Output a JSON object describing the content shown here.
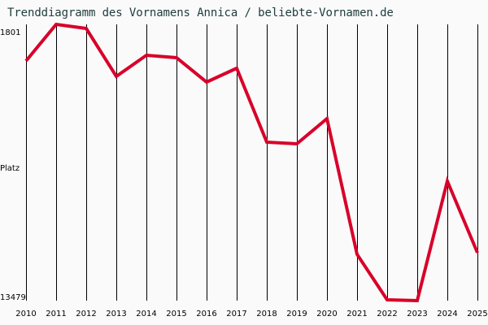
{
  "title": "Trenddiagramm des Vornamens Annica / beliebte-Vornamen.de",
  "y_axis": {
    "top_label": "1801",
    "middle_label": "Platz",
    "bottom_label": "13479"
  },
  "colors": {
    "line": "#d8002a",
    "grid": "#000000",
    "background": "#fafafa",
    "title": "#203d3d"
  },
  "chart_data": {
    "type": "line",
    "title": "Trenddiagramm des Vornamens Annica / beliebte-Vornamen.de",
    "xlabel": "",
    "ylabel": "Platz",
    "ylim": [
      13479,
      1801
    ],
    "y_inverted": true,
    "grid": "vertical",
    "legend": "none",
    "categories": [
      "2010",
      "2011",
      "2012",
      "2013",
      "2014",
      "2015",
      "2016",
      "2017",
      "2018",
      "2019",
      "2020",
      "2021",
      "2022",
      "2023",
      "2024",
      "2025"
    ],
    "series": [
      {
        "name": "Annica",
        "values": [
          3347,
          1801,
          1973,
          4000,
          3106,
          3209,
          4240,
          3656,
          6781,
          6850,
          5785,
          11521,
          13445,
          13479,
          8428,
          11452
        ]
      }
    ]
  }
}
